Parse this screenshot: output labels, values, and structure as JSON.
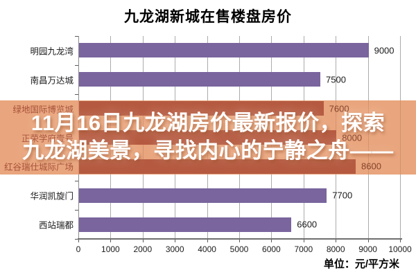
{
  "title": "九龙湖新城在售楼盘房价",
  "unit_note": "单位：元/平方米",
  "overlay": {
    "line1": "11月16日九龙湖房价最新报价，探索",
    "line2": "九龙湖美景，寻找内心的宁静之舟——",
    "band_color": "#E9A57D",
    "text_color": "#FFFFFF"
  },
  "chart_data": {
    "type": "bar",
    "orientation": "horizontal",
    "title": "九龙湖新城在售楼盘房价",
    "categories": [
      "明园九龙湾",
      "南昌万达城",
      "绿地国际博览城",
      "正荣学府壹号",
      "红谷瑞仕城际广场",
      "华润凯旋门",
      "西站瑞都"
    ],
    "values": [
      9000,
      7500,
      7600,
      8000,
      8600,
      7700,
      6600
    ],
    "unit": "元/平方米",
    "xlabel": "",
    "ylabel": "",
    "xlim": [
      0,
      10000
    ],
    "x_ticks": [
      0,
      1000,
      2000,
      3000,
      4000,
      5000,
      6000,
      7000,
      8000,
      9000,
      10000
    ],
    "grid": true,
    "legend": false,
    "bar_color": "#7A659E",
    "gridline_color": "#ABABAB",
    "overlay_row_indices": [
      2,
      3,
      4
    ],
    "overlay_bar_color": "#B55A41",
    "overlay_label_color": "#A65139",
    "overlay_value_color": "#84432C"
  }
}
